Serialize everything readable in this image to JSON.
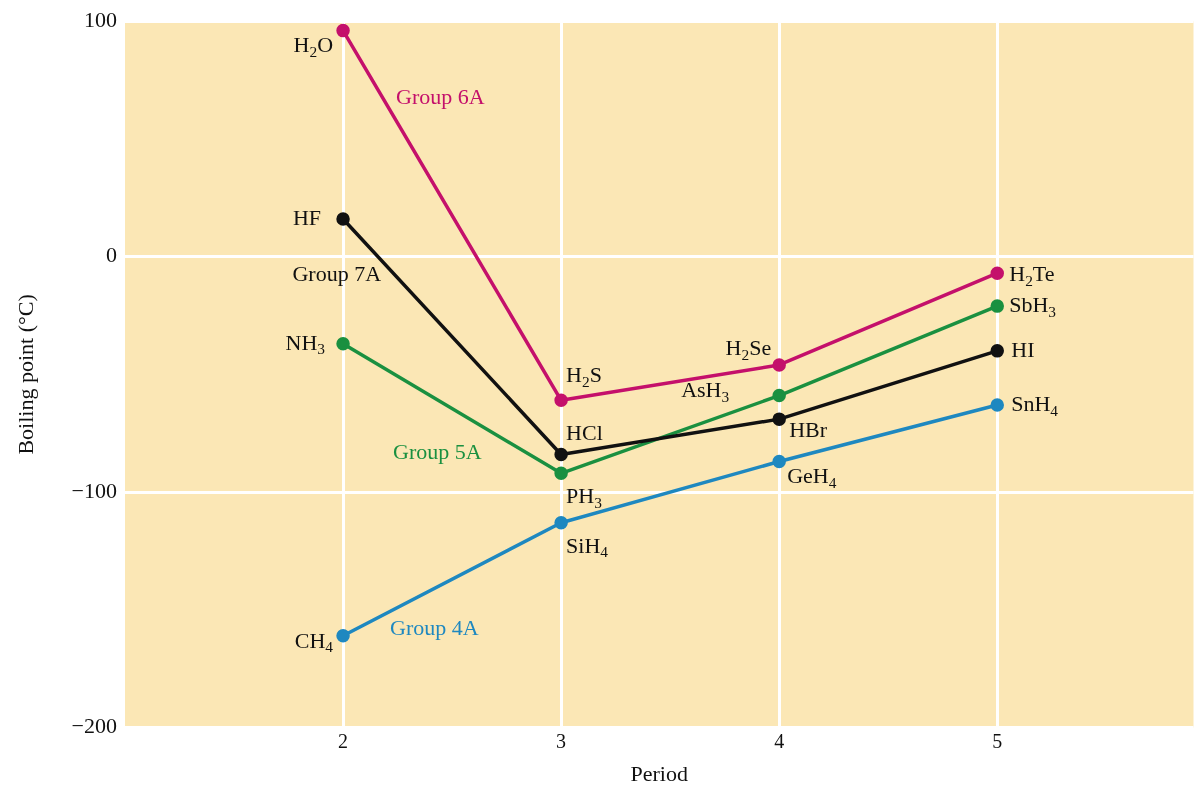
{
  "chart_data": {
    "type": "line",
    "xlabel": "Period",
    "ylabel": "Boiling point (°C)",
    "x": [
      2,
      3,
      4,
      5
    ],
    "xlim": [
      1,
      5.9
    ],
    "xticks": [
      2,
      3,
      4,
      5
    ],
    "ylim": [
      -200,
      100
    ],
    "yticks": [
      {
        "value": -200,
        "label": "−200"
      },
      {
        "value": -100,
        "label": "−100"
      },
      0,
      100
    ],
    "grid": true,
    "legend": false,
    "marker": "circle",
    "line_style": "solid",
    "series": [
      {
        "name": "Group 6A",
        "color": "#c4106b",
        "values": [
          96,
          -61,
          -46,
          -7
        ]
      },
      {
        "name": "Group 7A",
        "color": "#111111",
        "values": [
          16,
          -84,
          -69,
          -40
        ]
      },
      {
        "name": "Group 5A",
        "color": "#1a9040",
        "values": [
          -37,
          -92,
          -59,
          -21
        ]
      },
      {
        "name": "Group 4A",
        "color": "#1e88c0",
        "values": [
          -161,
          -113,
          -87,
          -63
        ]
      }
    ],
    "annotations": [
      {
        "text": "H$_{2}$O",
        "x": 2,
        "y": 96
      },
      {
        "text": "H$_{2}$S",
        "x": 3,
        "y": -61
      },
      {
        "text": "H$_{2}$Se",
        "x": 4,
        "y": -46
      },
      {
        "text": "H$_{2}$Te",
        "x": 5,
        "y": -7
      },
      {
        "text": "HF",
        "x": 2,
        "y": 16
      },
      {
        "text": "HCl",
        "x": 3,
        "y": -84
      },
      {
        "text": "HBr",
        "x": 4,
        "y": -69
      },
      {
        "text": "HI",
        "x": 5,
        "y": -40
      },
      {
        "text": "NH$_{3}$",
        "x": 2,
        "y": -37
      },
      {
        "text": "PH$_{3}$",
        "x": 3,
        "y": -92
      },
      {
        "text": "AsH$_{3}$",
        "x": 4,
        "y": -59
      },
      {
        "text": "SbH$_{3}$",
        "x": 5,
        "y": -21
      },
      {
        "text": "CH$_{4}$",
        "x": 2,
        "y": -161
      },
      {
        "text": "SiH$_{4}$",
        "x": 3,
        "y": -113
      },
      {
        "text": "GeH$_{4}$",
        "x": 4,
        "y": -87
      },
      {
        "text": "SnH$_{4}$",
        "x": 5,
        "y": -63
      }
    ]
  }
}
